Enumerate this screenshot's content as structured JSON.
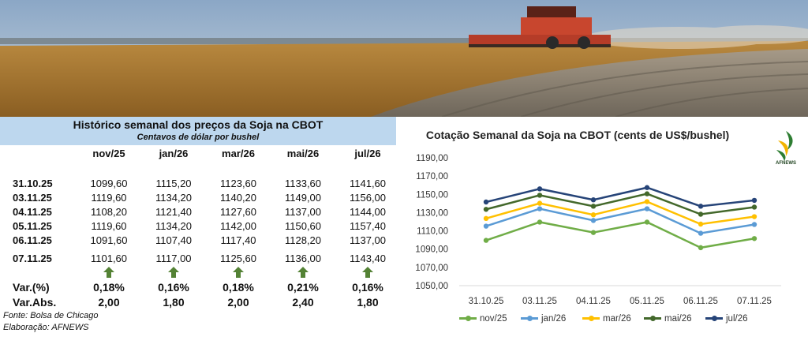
{
  "table": {
    "title": "Histórico semanal dos preços da Soja na CBOT",
    "subtitle": "Centavos de dólar por bushel",
    "columns": [
      "nov/25",
      "jan/26",
      "mar/26",
      "mai/26",
      "jul/26"
    ],
    "rows": [
      {
        "date": "31.10.25",
        "values": [
          "1099,60",
          "1115,20",
          "1123,60",
          "1133,60",
          "1141,60"
        ]
      },
      {
        "date": "03.11.25",
        "values": [
          "1119,60",
          "1134,20",
          "1140,20",
          "1149,00",
          "1156,00"
        ]
      },
      {
        "date": "04.11.25",
        "values": [
          "1108,20",
          "1121,40",
          "1127,60",
          "1137,00",
          "1144,00"
        ]
      },
      {
        "date": "05.11.25",
        "values": [
          "1119,60",
          "1134,20",
          "1142,00",
          "1150,60",
          "1157,40"
        ]
      },
      {
        "date": "06.11.25",
        "values": [
          "1091,60",
          "1107,40",
          "1117,40",
          "1128,20",
          "1137,00"
        ]
      },
      {
        "date": "07.11.25",
        "values": [
          "1101,60",
          "1117,00",
          "1125,60",
          "1136,00",
          "1143,40"
        ]
      }
    ],
    "var_pct_label": "Var.(%)",
    "var_pct": [
      "0,18%",
      "0,16%",
      "0,18%",
      "0,21%",
      "0,16%"
    ],
    "var_abs_label": "Var.Abs.",
    "var_abs": [
      "2,00",
      "1,80",
      "2,00",
      "2,40",
      "1,80"
    ],
    "source": "Fonte: Bolsa de Chicago",
    "credit": "Elaboração: AFNEWS"
  },
  "logo_text": "AFNEWS",
  "colors": {
    "nov25": "#70ad47",
    "jan26": "#5b9bd5",
    "mar26": "#ffc000",
    "mai26": "#43682b",
    "jul26": "#264478",
    "arrow": "#548235",
    "header_bg": "#bdd7ee"
  },
  "chart_data": {
    "type": "line",
    "title": "Cotação Semanal da Soja na CBOT (cents de US$/bushel)",
    "x": [
      "31.10.25",
      "03.11.25",
      "04.11.25",
      "05.11.25",
      "06.11.25",
      "07.11.25"
    ],
    "ylim": [
      1050,
      1190
    ],
    "yticks": [
      "1050,00",
      "1070,00",
      "1090,00",
      "1110,00",
      "1130,00",
      "1150,00",
      "1170,00",
      "1190,00"
    ],
    "grid": false,
    "legend": "bottom",
    "series": [
      {
        "name": "nov/25",
        "color": "#70ad47",
        "values": [
          1099.6,
          1119.6,
          1108.2,
          1119.6,
          1091.6,
          1101.6
        ]
      },
      {
        "name": "jan/26",
        "color": "#5b9bd5",
        "values": [
          1115.2,
          1134.2,
          1121.4,
          1134.2,
          1107.4,
          1117.0
        ]
      },
      {
        "name": "mar/26",
        "color": "#ffc000",
        "values": [
          1123.6,
          1140.2,
          1127.6,
          1142.0,
          1117.4,
          1125.6
        ]
      },
      {
        "name": "mai/26",
        "color": "#43682b",
        "values": [
          1133.6,
          1149.0,
          1137.0,
          1150.6,
          1128.2,
          1136.0
        ]
      },
      {
        "name": "jul/26",
        "color": "#264478",
        "values": [
          1141.6,
          1156.0,
          1144.0,
          1157.4,
          1137.0,
          1143.4
        ]
      }
    ]
  }
}
